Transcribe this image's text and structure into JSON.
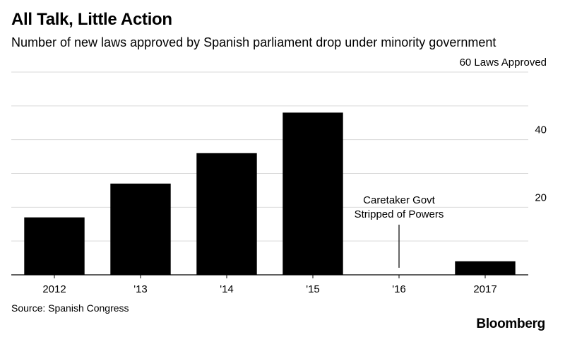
{
  "header": {
    "title": "All Talk, Little Action",
    "subtitle": "Number of new laws approved by Spanish parliament drop under minority government"
  },
  "footer": {
    "source": "Source: Spanish Congress",
    "brand": "Bloomberg"
  },
  "colors": {
    "bar": "#000000",
    "grid": "#d9d9d9",
    "axis": "#000000"
  },
  "chart_data": {
    "type": "bar",
    "categories": [
      "2012",
      "'13",
      "'14",
      "'15",
      "'16",
      "2017"
    ],
    "values": [
      17,
      27,
      36,
      48,
      0,
      4
    ],
    "title": "All Talk, Little Action",
    "subtitle": "Number of new laws approved by Spanish parliament drop under minority government",
    "xlabel": "",
    "ylabel": "",
    "ylim": [
      0,
      60
    ],
    "y_ticks": [
      10,
      20,
      30,
      40,
      50,
      60
    ],
    "y_tick_labels": [
      "",
      "20",
      "",
      "40",
      "",
      "60 Laws Approved"
    ],
    "grid": true,
    "y_axis_side": "right",
    "annotations": [
      {
        "category": "'16",
        "lines": [
          "Caretaker Govt",
          "Stripped of Powers"
        ]
      }
    ]
  }
}
